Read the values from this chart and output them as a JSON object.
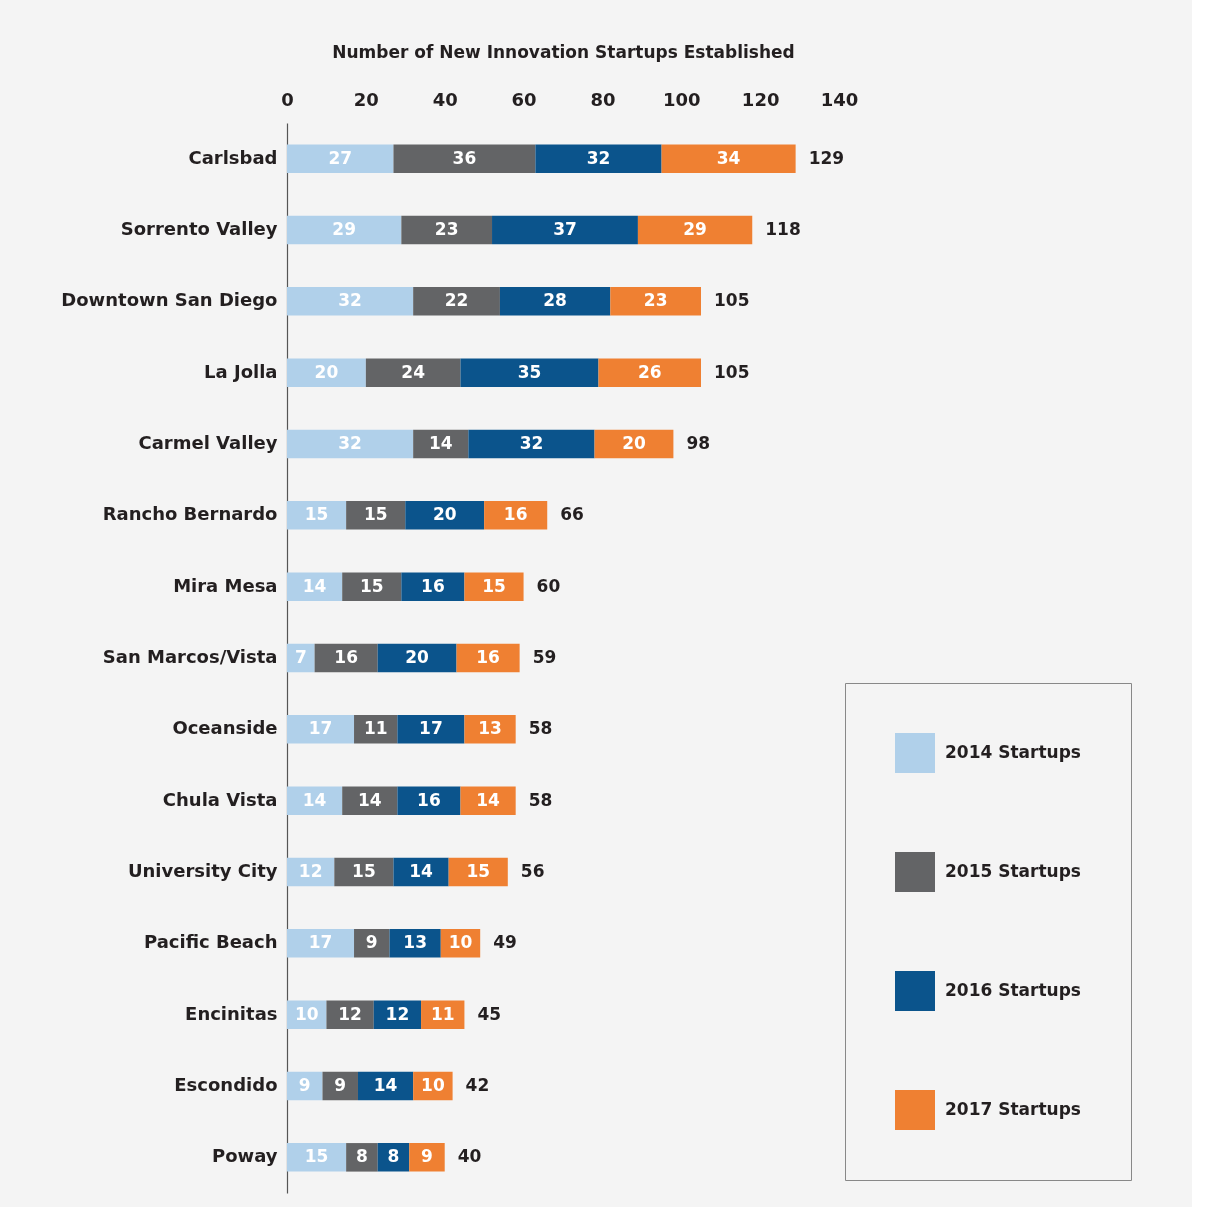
{
  "chart_data": {
    "type": "bar",
    "orientation": "horizontal",
    "stacked": true,
    "xlabel": "Number of New Innovation Startups Established",
    "categories": [
      "Carlsbad",
      "Sorrento Valley",
      "Downtown San Diego",
      "La Jolla",
      "Carmel Valley",
      "Rancho Bernardo",
      "Mira Mesa",
      "San Marcos/Vista",
      "Oceanside",
      "Chula Vista",
      "University City",
      "Pacific Beach",
      "Encinitas",
      "Escondido",
      "Poway"
    ],
    "series": [
      {
        "name": "2014 Startups",
        "color": "#b0d0ea",
        "values": [
          27,
          29,
          32,
          20,
          32,
          15,
          14,
          7,
          17,
          14,
          12,
          17,
          10,
          9,
          15
        ]
      },
      {
        "name": "2015 Startups",
        "color": "#636466",
        "values": [
          36,
          23,
          22,
          24,
          14,
          15,
          15,
          16,
          11,
          14,
          15,
          9,
          12,
          9,
          8
        ]
      },
      {
        "name": "2016 Startups",
        "color": "#0b548c",
        "values": [
          32,
          37,
          28,
          35,
          32,
          20,
          16,
          20,
          17,
          16,
          14,
          13,
          12,
          14,
          8
        ]
      },
      {
        "name": "2017 Startups",
        "color": "#ef8032",
        "values": [
          34,
          29,
          23,
          26,
          20,
          16,
          15,
          16,
          13,
          14,
          15,
          10,
          11,
          10,
          9
        ]
      }
    ],
    "totals": [
      "129",
      "118",
      "105",
      "105",
      "98",
      "66",
      "60",
      "59",
      "58",
      "58",
      "56",
      "49",
      "45",
      "42",
      "40"
    ],
    "xlim": [
      0,
      140
    ],
    "xticks": [
      0,
      20,
      40,
      60,
      80,
      100,
      120,
      140
    ],
    "data_labels": true,
    "legend": "bottom right",
    "grid": false
  }
}
